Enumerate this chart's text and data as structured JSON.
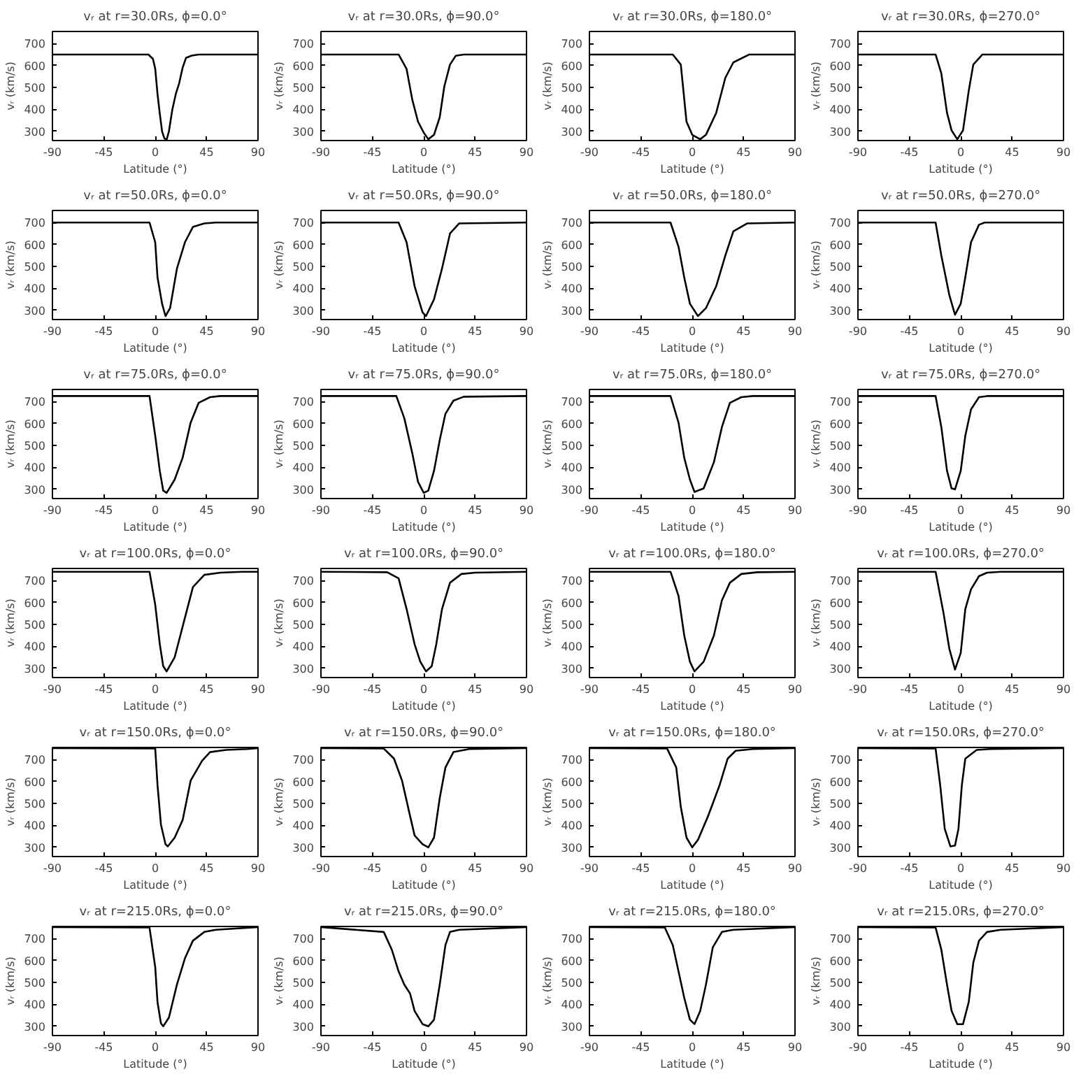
{
  "chart_data": [
    {
      "type": "line",
      "title": "vᵣ at r=30.0Rs, ϕ=0.0°",
      "xlabel": "Latitude (°)",
      "ylabel": "vᵣ (km/s)",
      "xlim": [
        -90,
        90
      ],
      "ylim": [
        258,
        755
      ],
      "xticks": [
        -90,
        -45,
        0,
        45,
        90
      ],
      "yticks": [
        300,
        400,
        500,
        600,
        700
      ],
      "color": "#000000",
      "x": [
        -90,
        -6,
        -2,
        0,
        2,
        4,
        6,
        8,
        10,
        12,
        15,
        18,
        21,
        24,
        27,
        32,
        38,
        90
      ],
      "values": [
        650,
        650,
        630,
        585,
        470,
        380,
        300,
        268,
        262,
        300,
        400,
        470,
        520,
        590,
        635,
        645,
        650,
        650
      ]
    },
    {
      "type": "line",
      "title": "vᵣ at r=30.0Rs, ϕ=90.0°",
      "xlabel": "Latitude (°)",
      "ylabel": "vᵣ (km/s)",
      "xlim": [
        -90,
        90
      ],
      "ylim": [
        258,
        755
      ],
      "xticks": [
        -90,
        -45,
        0,
        45,
        90
      ],
      "yticks": [
        300,
        400,
        500,
        600,
        700
      ],
      "color": "#000000",
      "x": [
        -90,
        -22,
        -15,
        -10,
        -5,
        0,
        4,
        9,
        14,
        18,
        23,
        28,
        35,
        90
      ],
      "values": [
        650,
        650,
        584,
        444,
        344,
        294,
        264,
        284,
        364,
        504,
        604,
        644,
        650,
        650
      ]
    },
    {
      "type": "line",
      "title": "vᵣ at r=30.0Rs, ϕ=180.0°",
      "xlabel": "Latitude (°)",
      "ylabel": "vᵣ (km/s)",
      "xlim": [
        -90,
        90
      ],
      "ylim": [
        258,
        755
      ],
      "xticks": [
        -90,
        -45,
        0,
        45,
        90
      ],
      "yticks": [
        300,
        400,
        500,
        600,
        700
      ],
      "color": "#000000",
      "x": [
        -90,
        -17,
        -10,
        -5,
        0,
        7,
        12,
        21,
        29,
        36,
        50,
        90
      ],
      "values": [
        650,
        650,
        604,
        344,
        284,
        264,
        284,
        384,
        544,
        614,
        650,
        650
      ]
    },
    {
      "type": "line",
      "title": "vᵣ at r=30.0Rs, ϕ=270.0°",
      "xlabel": "Latitude (°)",
      "ylabel": "vᵣ (km/s)",
      "xlim": [
        -90,
        90
      ],
      "ylim": [
        258,
        755
      ],
      "xticks": [
        -90,
        -45,
        0,
        45,
        90
      ],
      "yticks": [
        300,
        400,
        500,
        600,
        700
      ],
      "color": "#000000",
      "x": [
        -90,
        -22,
        -17,
        -12,
        -8,
        -3,
        2,
        7,
        11,
        19,
        90
      ],
      "values": [
        650,
        650,
        564,
        384,
        304,
        264,
        304,
        484,
        604,
        650,
        650
      ]
    },
    {
      "type": "line",
      "title": "vᵣ at r=50.0Rs, ϕ=0.0°",
      "xlabel": "Latitude (°)",
      "ylabel": "vᵣ (km/s)",
      "xlim": [
        -90,
        90
      ],
      "ylim": [
        258,
        755
      ],
      "xticks": [
        -90,
        -45,
        0,
        45,
        90
      ],
      "yticks": [
        300,
        400,
        500,
        600,
        700
      ],
      "color": "#000000",
      "x": [
        -90,
        -5,
        0,
        2,
        6,
        9,
        13,
        19,
        26,
        33,
        43,
        53,
        90
      ],
      "values": [
        700,
        700,
        610,
        450,
        330,
        274,
        310,
        490,
        610,
        680,
        696,
        700,
        700
      ]
    },
    {
      "type": "line",
      "title": "vᵣ at r=50.0Rs, ϕ=90.0°",
      "xlabel": "Latitude (°)",
      "ylabel": "vᵣ (km/s)",
      "xlim": [
        -90,
        90
      ],
      "ylim": [
        258,
        755
      ],
      "xticks": [
        -90,
        -45,
        0,
        45,
        90
      ],
      "yticks": [
        300,
        400,
        500,
        600,
        700
      ],
      "color": "#000000",
      "x": [
        -90,
        -22,
        -15,
        -8,
        -1,
        2,
        9,
        16,
        23,
        31,
        90
      ],
      "values": [
        700,
        700,
        610,
        410,
        290,
        274,
        350,
        490,
        650,
        696,
        700
      ]
    },
    {
      "type": "line",
      "title": "vᵣ at r=50.0Rs, ϕ=180.0°",
      "xlabel": "Latitude (°)",
      "ylabel": "vᵣ (km/s)",
      "xlim": [
        -90,
        90
      ],
      "ylim": [
        258,
        755
      ],
      "xticks": [
        -90,
        -45,
        0,
        45,
        90
      ],
      "yticks": [
        300,
        400,
        500,
        600,
        700
      ],
      "color": "#000000",
      "x": [
        -90,
        -19,
        -12,
        -7,
        -2,
        5,
        12,
        21,
        29,
        36,
        48,
        90
      ],
      "values": [
        700,
        700,
        590,
        450,
        330,
        274,
        310,
        410,
        550,
        660,
        696,
        700
      ]
    },
    {
      "type": "line",
      "title": "vᵣ at r=50.0Rs, ϕ=270.0°",
      "xlabel": "Latitude (°)",
      "ylabel": "vᵣ (km/s)",
      "xlim": [
        -90,
        90
      ],
      "ylim": [
        258,
        755
      ],
      "xticks": [
        -90,
        -45,
        0,
        45,
        90
      ],
      "yticks": [
        300,
        400,
        500,
        600,
        700
      ],
      "color": "#000000",
      "x": [
        -90,
        -22,
        -17,
        -10,
        -5,
        0,
        4,
        9,
        16,
        21,
        90
      ],
      "values": [
        700,
        700,
        550,
        370,
        280,
        330,
        450,
        610,
        690,
        700,
        700
      ]
    },
    {
      "type": "line",
      "title": "vᵣ at r=75.0Rs, ϕ=0.0°",
      "xlabel": "Latitude (°)",
      "ylabel": "vᵣ (km/s)",
      "xlim": [
        -90,
        90
      ],
      "ylim": [
        258,
        755
      ],
      "xticks": [
        -90,
        -45,
        0,
        45,
        90
      ],
      "yticks": [
        300,
        400,
        500,
        600,
        700
      ],
      "color": "#000000",
      "x": [
        -90,
        -5,
        0,
        4,
        7,
        10,
        17,
        24,
        31,
        38,
        48,
        57,
        90
      ],
      "values": [
        725,
        725,
        544,
        384,
        294,
        284,
        344,
        444,
        604,
        694,
        720,
        725,
        725
      ]
    },
    {
      "type": "line",
      "title": "vᵣ at r=75.0Rs, ϕ=90.0°",
      "xlabel": "Latitude (°)",
      "ylabel": "vᵣ (km/s)",
      "xlim": [
        -90,
        90
      ],
      "ylim": [
        258,
        755
      ],
      "xticks": [
        -90,
        -45,
        0,
        45,
        90
      ],
      "yticks": [
        300,
        400,
        500,
        600,
        700
      ],
      "color": "#000000",
      "x": [
        -90,
        -24,
        -17,
        -10,
        -5,
        0,
        4,
        9,
        14,
        19,
        26,
        35,
        90
      ],
      "values": [
        725,
        725,
        624,
        464,
        334,
        284,
        294,
        384,
        524,
        644,
        704,
        722,
        725
      ]
    },
    {
      "type": "line",
      "title": "vᵣ at r=75.0Rs, ϕ=180.0°",
      "xlabel": "Latitude (°)",
      "ylabel": "vᵣ (km/s)",
      "xlim": [
        -90,
        90
      ],
      "ylim": [
        258,
        755
      ],
      "xticks": [
        -90,
        -45,
        0,
        45,
        90
      ],
      "yticks": [
        300,
        400,
        500,
        600,
        700
      ],
      "color": "#000000",
      "x": [
        -90,
        -19,
        -12,
        -7,
        -2,
        2,
        10,
        19,
        26,
        33,
        43,
        53,
        90
      ],
      "values": [
        725,
        725,
        604,
        444,
        344,
        288,
        304,
        424,
        584,
        694,
        720,
        725,
        725
      ]
    },
    {
      "type": "line",
      "title": "vᵣ at r=75.0Rs, ϕ=270.0°",
      "xlabel": "Latitude (°)",
      "ylabel": "vᵣ (km/s)",
      "xlim": [
        -90,
        90
      ],
      "ylim": [
        258,
        755
      ],
      "xticks": [
        -90,
        -45,
        0,
        45,
        90
      ],
      "yticks": [
        300,
        400,
        500,
        600,
        700
      ],
      "color": "#000000",
      "x": [
        -90,
        -22,
        -17,
        -12,
        -8,
        -5,
        0,
        4,
        9,
        16,
        23,
        90
      ],
      "values": [
        725,
        725,
        584,
        384,
        304,
        300,
        384,
        544,
        664,
        720,
        725,
        725
      ]
    },
    {
      "type": "line",
      "title": "vᵣ at r=100.0Rs, ϕ=0.0°",
      "xlabel": "Latitude (°)",
      "ylabel": "vᵣ (km/s)",
      "xlim": [
        -90,
        90
      ],
      "ylim": [
        258,
        755
      ],
      "xticks": [
        -90,
        -45,
        0,
        45,
        90
      ],
      "yticks": [
        300,
        400,
        500,
        600,
        700
      ],
      "color": "#000000",
      "x": [
        -90,
        -5,
        0,
        4,
        7,
        10,
        17,
        24,
        33,
        43,
        57,
        76,
        90
      ],
      "values": [
        740,
        740,
        590,
        410,
        310,
        286,
        350,
        490,
        670,
        726,
        736,
        740,
        740
      ]
    },
    {
      "type": "line",
      "title": "vᵣ at r=100.0Rs, ϕ=90.0°",
      "xlabel": "Latitude (°)",
      "ylabel": "vᵣ (km/s)",
      "xlim": [
        -90,
        90
      ],
      "ylim": [
        258,
        755
      ],
      "xticks": [
        -90,
        -45,
        0,
        45,
        90
      ],
      "yticks": [
        300,
        400,
        500,
        600,
        700
      ],
      "color": "#000000",
      "x": [
        -90,
        -32,
        -22,
        -15,
        -8,
        -3,
        2,
        7,
        11,
        16,
        23,
        33,
        45,
        90
      ],
      "values": [
        740,
        738,
        710,
        570,
        410,
        330,
        286,
        310,
        410,
        570,
        690,
        730,
        736,
        740
      ]
    },
    {
      "type": "line",
      "title": "vᵣ at r=100.0Rs, ϕ=180.0°",
      "xlabel": "Latitude (°)",
      "ylabel": "vᵣ (km/s)",
      "xlim": [
        -90,
        90
      ],
      "ylim": [
        258,
        755
      ],
      "xticks": [
        -90,
        -45,
        0,
        45,
        90
      ],
      "yticks": [
        300,
        400,
        500,
        600,
        700
      ],
      "color": "#000000",
      "x": [
        -90,
        -19,
        -12,
        -7,
        -2,
        2,
        10,
        19,
        26,
        33,
        43,
        57,
        90
      ],
      "values": [
        740,
        740,
        630,
        450,
        330,
        286,
        330,
        450,
        610,
        690,
        730,
        738,
        740
      ]
    },
    {
      "type": "line",
      "title": "vᵣ at r=100.0Rs, ϕ=270.0°",
      "xlabel": "Latitude (°)",
      "ylabel": "vᵣ (km/s)",
      "xlim": [
        -90,
        90
      ],
      "ylim": [
        258,
        755
      ],
      "xticks": [
        -90,
        -45,
        0,
        45,
        90
      ],
      "yticks": [
        300,
        400,
        500,
        600,
        700
      ],
      "color": "#000000",
      "x": [
        -90,
        -22,
        -15,
        -10,
        -5,
        0,
        4,
        9,
        16,
        23,
        35,
        90
      ],
      "values": [
        740,
        740,
        550,
        390,
        294,
        370,
        570,
        660,
        720,
        736,
        740,
        740
      ]
    },
    {
      "type": "line",
      "title": "vᵣ at r=150.0Rs, ϕ=0.0°",
      "xlabel": "Latitude (°)",
      "ylabel": "vᵣ (km/s)",
      "xlim": [
        -90,
        90
      ],
      "ylim": [
        258,
        755
      ],
      "xticks": [
        -90,
        -45,
        0,
        45,
        90
      ],
      "yticks": [
        300,
        400,
        500,
        600,
        700
      ],
      "color": "#000000",
      "x": [
        -90,
        0,
        2,
        5,
        9,
        11,
        17,
        24,
        31,
        41,
        48,
        62,
        81,
        90
      ],
      "values": [
        752,
        750,
        584,
        404,
        314,
        304,
        344,
        424,
        604,
        694,
        734,
        744,
        748,
        752
      ]
    },
    {
      "type": "line",
      "title": "vᵣ at r=150.0Rs, ϕ=90.0°",
      "xlabel": "Latitude (°)",
      "ylabel": "vᵣ (km/s)",
      "xlim": [
        -90,
        90
      ],
      "ylim": [
        258,
        755
      ],
      "xticks": [
        -90,
        -45,
        0,
        45,
        90
      ],
      "yticks": [
        300,
        400,
        500,
        600,
        700
      ],
      "color": "#000000",
      "x": [
        -90,
        -35,
        -26,
        -19,
        -12,
        -8,
        -1,
        4,
        9,
        14,
        19,
        26,
        40,
        90
      ],
      "values": [
        752,
        750,
        704,
        604,
        444,
        354,
        314,
        300,
        344,
        524,
        664,
        734,
        748,
        752
      ]
    },
    {
      "type": "line",
      "title": "vᵣ at r=150.0Rs, ϕ=180.0°",
      "xlabel": "Latitude (°)",
      "ylabel": "vᵣ (km/s)",
      "xlim": [
        -90,
        90
      ],
      "ylim": [
        258,
        755
      ],
      "xticks": [
        -90,
        -45,
        0,
        45,
        90
      ],
      "yticks": [
        300,
        400,
        500,
        600,
        700
      ],
      "color": "#000000",
      "x": [
        -90,
        -22,
        -14,
        -10,
        -5,
        0,
        5,
        14,
        24,
        31,
        38,
        53,
        90
      ],
      "values": [
        752,
        750,
        664,
        484,
        344,
        300,
        334,
        444,
        584,
        704,
        740,
        748,
        752
      ]
    },
    {
      "type": "line",
      "title": "vᵣ at r=150.0Rs, ϕ=270.0°",
      "xlabel": "Latitude (°)",
      "ylabel": "vᵣ (km/s)",
      "xlim": [
        -90,
        90
      ],
      "ylim": [
        258,
        755
      ],
      "xticks": [
        -90,
        -45,
        0,
        45,
        90
      ],
      "yticks": [
        300,
        400,
        500,
        600,
        700
      ],
      "color": "#000000",
      "x": [
        -90,
        -22,
        -18,
        -14,
        -9,
        -5,
        -2,
        1,
        4,
        14,
        26,
        90
      ],
      "values": [
        752,
        750,
        584,
        384,
        304,
        308,
        384,
        584,
        704,
        744,
        748,
        752
      ]
    },
    {
      "type": "line",
      "title": "vᵣ at r=215.0Rs, ϕ=0.0°",
      "xlabel": "Latitude (°)",
      "ylabel": "vᵣ (km/s)",
      "xlim": [
        -90,
        90
      ],
      "ylim": [
        258,
        755
      ],
      "xticks": [
        -90,
        -45,
        0,
        45,
        90
      ],
      "yticks": [
        300,
        400,
        500,
        600,
        700
      ],
      "color": "#000000",
      "x": [
        -90,
        -5,
        0,
        2,
        5,
        7,
        12,
        19,
        26,
        33,
        43,
        53,
        90
      ],
      "values": [
        752,
        750,
        570,
        410,
        314,
        300,
        340,
        490,
        610,
        690,
        730,
        740,
        752
      ]
    },
    {
      "type": "line",
      "title": "vᵣ at r=215.0Rs, ϕ=90.0°",
      "xlabel": "Latitude (°)",
      "ylabel": "vᵣ (km/s)",
      "xlim": [
        -90,
        90
      ],
      "ylim": [
        258,
        755
      ],
      "xticks": [
        -90,
        -45,
        0,
        45,
        90
      ],
      "yticks": [
        300,
        400,
        500,
        600,
        700
      ],
      "color": "#000000",
      "x": [
        -90,
        -35,
        -28,
        -22,
        -17,
        -12,
        -8,
        -1,
        4,
        9,
        14,
        19,
        23,
        31,
        90
      ],
      "values": [
        752,
        730,
        650,
        550,
        490,
        450,
        370,
        310,
        300,
        330,
        490,
        670,
        730,
        740,
        752
      ]
    },
    {
      "type": "line",
      "title": "vᵣ at r=215.0Rs, ϕ=180.0°",
      "xlabel": "Latitude (°)",
      "ylabel": "vᵣ (km/s)",
      "xlim": [
        -90,
        90
      ],
      "ylim": [
        258,
        755
      ],
      "xticks": [
        -90,
        -45,
        0,
        45,
        90
      ],
      "yticks": [
        300,
        400,
        500,
        600,
        700
      ],
      "color": "#000000",
      "x": [
        -90,
        -24,
        -17,
        -12,
        -7,
        -2,
        2,
        7,
        12,
        18,
        26,
        36,
        90
      ],
      "values": [
        752,
        750,
        670,
        550,
        430,
        330,
        310,
        370,
        490,
        660,
        730,
        740,
        752
      ]
    },
    {
      "type": "line",
      "title": "vᵣ at r=215.0Rs, ϕ=270.0°",
      "xlabel": "Latitude (°)",
      "ylabel": "vᵣ (km/s)",
      "xlim": [
        -90,
        90
      ],
      "ylim": [
        258,
        755
      ],
      "xticks": [
        -90,
        -45,
        0,
        45,
        90
      ],
      "yticks": [
        300,
        400,
        500,
        600,
        700
      ],
      "color": "#000000",
      "x": [
        -90,
        -22,
        -17,
        -12,
        -8,
        -3,
        2,
        7,
        11,
        16,
        23,
        35,
        90
      ],
      "values": [
        752,
        750,
        650,
        490,
        370,
        310,
        310,
        410,
        590,
        690,
        730,
        740,
        752
      ]
    }
  ]
}
